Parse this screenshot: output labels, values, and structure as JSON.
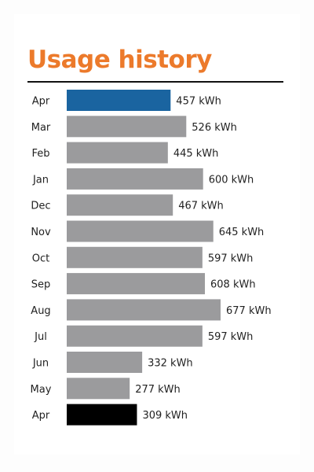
{
  "chart_data": {
    "type": "bar",
    "orientation": "horizontal",
    "title": "Usage history",
    "categories": [
      "Apr",
      "Mar",
      "Feb",
      "Jan",
      "Dec",
      "Nov",
      "Oct",
      "Sep",
      "Aug",
      "Jul",
      "Jun",
      "May",
      "Apr"
    ],
    "values": [
      457,
      526,
      445,
      600,
      467,
      645,
      597,
      608,
      677,
      597,
      332,
      277,
      309
    ],
    "value_labels": [
      "457 kWh",
      "526 kWh",
      "445 kWh",
      "600 kWh",
      "467 kWh",
      "645 kWh",
      "597 kWh",
      "608 kWh",
      "677 kWh",
      "597 kWh",
      "332 kWh",
      "277 kWh",
      "309 kWh"
    ],
    "unit": "kWh",
    "xlabel": "",
    "ylabel": "",
    "xlim": [
      0,
      677
    ],
    "grid": false,
    "legend": "none",
    "bar_colors": [
      "#1a64a0",
      "#9b9b9d",
      "#9b9b9d",
      "#9b9b9d",
      "#9b9b9d",
      "#9b9b9d",
      "#9b9b9d",
      "#9b9b9d",
      "#9b9b9d",
      "#9b9b9d",
      "#9b9b9d",
      "#9b9b9d",
      "#000000"
    ]
  },
  "colors": {
    "title": "#ec7a2b",
    "rule": "#111111",
    "text": "#222222",
    "current_bar": "#1a64a0",
    "standard_bar": "#9b9b9d",
    "previous_year_bar": "#000000"
  }
}
